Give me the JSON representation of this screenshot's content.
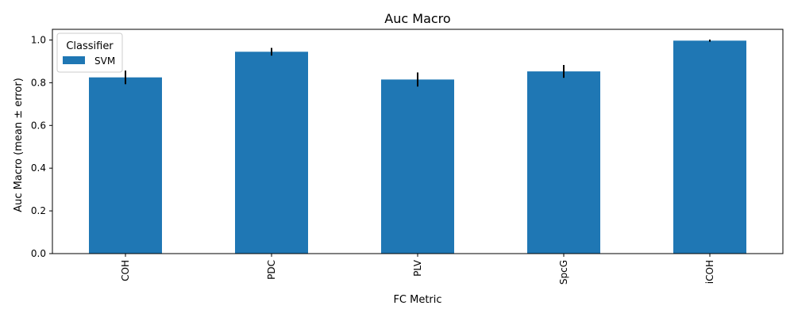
{
  "chart_data": {
    "type": "bar",
    "title": "Auc Macro",
    "xlabel": "FC Metric",
    "ylabel": "Auc Macro (mean ± error)",
    "categories": [
      "COH",
      "PDC",
      "PLV",
      "SpcG",
      "iCOH"
    ],
    "series": [
      {
        "name": "SVM",
        "values": [
          0.825,
          0.945,
          0.815,
          0.853,
          0.997
        ],
        "errors": [
          0.032,
          0.018,
          0.033,
          0.03,
          0.005
        ],
        "color": "#1f77b4"
      }
    ],
    "ylim": [
      0,
      1.05
    ],
    "yticks": [
      "0.0",
      "0.2",
      "0.4",
      "0.6",
      "0.8",
      "1.0"
    ],
    "legend": {
      "title": "Classifier",
      "position": "top-left"
    },
    "grid": false
  }
}
